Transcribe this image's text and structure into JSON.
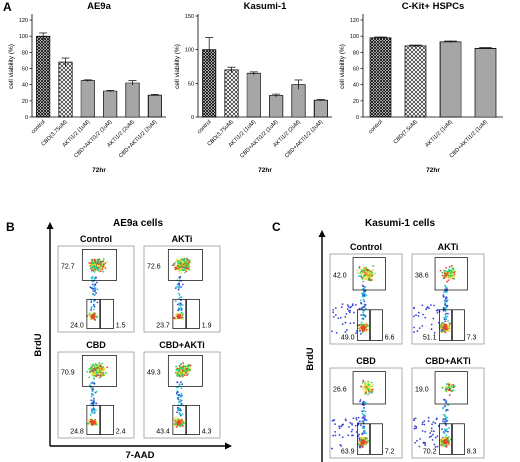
{
  "panels": {
    "A": "A",
    "B": "B",
    "C": "C"
  },
  "chart_data": [
    {
      "type": "bar",
      "title": "AE9a",
      "ylabel": "cell viability (%)",
      "xlabel": "72hr",
      "ylim": [
        0,
        125
      ],
      "yticks": [
        0,
        20,
        40,
        60,
        80,
        100,
        120
      ],
      "categories": [
        "control",
        "CBD(3.75uM)",
        "AKTi1/2 (1uM)",
        "CBD+AKTi1/2 (1uM)",
        "AKTi1/2 (2uM)",
        "CBD+AKTi1/2 (2uM)"
      ],
      "values": [
        100,
        68,
        45,
        32,
        42,
        27
      ],
      "errors": [
        4,
        5,
        1,
        1,
        3,
        1
      ],
      "patterns": [
        "cross",
        "hatch",
        "vline",
        "hline",
        "hline",
        "vline"
      ]
    },
    {
      "type": "bar",
      "title": "Kasumi-1",
      "ylabel": "cell viability (%)",
      "xlabel": "72hr",
      "ylim": [
        0,
        150
      ],
      "yticks": [
        0,
        50,
        100,
        150
      ],
      "categories": [
        "control",
        "CBD(3.75uM)",
        "AKTi1/2 (1uM)",
        "CBD+AKTi1/2 (1uM)",
        "AKTi1/2 (2uM)",
        "CBD+AKTi1/2 (2uM)"
      ],
      "values": [
        100,
        70,
        65,
        32,
        48,
        25
      ],
      "errors": [
        18,
        4,
        2,
        2,
        7,
        1
      ],
      "patterns": [
        "cross",
        "hatch",
        "vline",
        "hline",
        "hline",
        "vline"
      ]
    },
    {
      "type": "bar",
      "title": "C-Kit+ HSPCs",
      "ylabel": "cell viability (%)",
      "xlabel": "72hr",
      "ylim": [
        0,
        125
      ],
      "yticks": [
        0,
        20,
        40,
        60,
        80,
        100,
        120
      ],
      "categories": [
        "control",
        "CBD(7.5uM)",
        "AKTi1/2 (1uM)",
        "CBD+AKTi1/2 (1uM)"
      ],
      "values": [
        98,
        88,
        93,
        85
      ],
      "errors": [
        1,
        1,
        1,
        1
      ],
      "patterns": [
        "cross",
        "hatch",
        "vline",
        "hline"
      ]
    }
  ],
  "flow_B": {
    "title": "AE9a cells",
    "xlabel": "7-AAD",
    "ylabel": "BrdU",
    "plots": [
      {
        "label": "Control",
        "top": "72.7",
        "bl": "24.0",
        "br": "1.5"
      },
      {
        "label": "AKTi",
        "top": "72.6",
        "bl": "23.7",
        "br": "1.9"
      },
      {
        "label": "CBD",
        "top": "70.9",
        "bl": "24.8",
        "br": "2.4"
      },
      {
        "label": "CBD+AKTi",
        "top": "49.3",
        "bl": "43.4",
        "br": "4.3"
      }
    ]
  },
  "flow_C": {
    "title": "Kasumi-1 cells",
    "xlabel": "7-AAD",
    "ylabel": "BrdU",
    "plots": [
      {
        "label": "Control",
        "top": "42.0",
        "bl": "49.0",
        "br": "6.6"
      },
      {
        "label": "AKTi",
        "top": "38.6",
        "bl": "51.1",
        "br": "7.3"
      },
      {
        "label": "CBD",
        "top": "26.6",
        "bl": "63.9",
        "br": "7.2"
      },
      {
        "label": "CBD+AKTi",
        "top": "19.0",
        "bl": "70.2",
        "br": "8.3"
      }
    ]
  }
}
